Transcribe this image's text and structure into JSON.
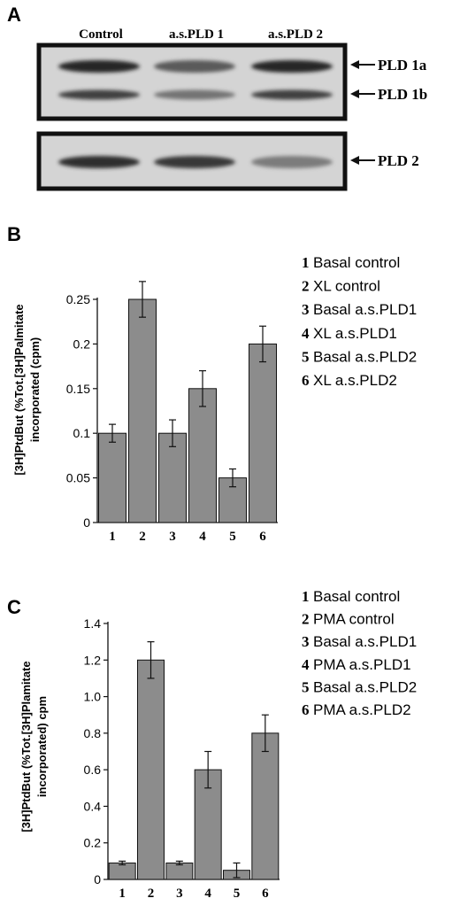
{
  "panel_a": {
    "letter": "A",
    "lanes": [
      "Control",
      "a.s.PLD 1",
      "a.s.PLD 2"
    ],
    "bands_top": [
      "PLD 1a",
      "PLD 1b"
    ],
    "bands_bottom": [
      "PLD 2"
    ],
    "band_intensity": {
      "PLD 1a": [
        0.95,
        0.65,
        0.95
      ],
      "PLD 1b": [
        0.8,
        0.5,
        0.8
      ],
      "PLD 2": [
        0.9,
        0.85,
        0.45
      ]
    }
  },
  "chart_data": [
    {
      "panel": "B",
      "type": "bar",
      "categories": [
        "1",
        "2",
        "3",
        "4",
        "5",
        "6"
      ],
      "values": [
        0.1,
        0.25,
        0.1,
        0.15,
        0.05,
        0.2
      ],
      "errors": [
        0.01,
        0.02,
        0.015,
        0.02,
        0.01,
        0.02
      ],
      "ylabel": [
        "[3H]PtdBut (%Tot.[3H]Palmitate",
        "incorporated (cpm)"
      ],
      "ylim": [
        0,
        0.25
      ],
      "yticks": [
        "0",
        "0.05",
        "0.1",
        "0.15",
        "0.2",
        "0.25"
      ],
      "legend": [
        {
          "num": "1",
          "text": "Basal control"
        },
        {
          "num": "2",
          "text": "XL control"
        },
        {
          "num": "3",
          "text": "Basal a.s.PLD1"
        },
        {
          "num": "4",
          "text": "XL a.s.PLD1"
        },
        {
          "num": "5",
          "text": "Basal a.s.PLD2"
        },
        {
          "num": "6",
          "text": "XL a.s.PLD2"
        }
      ],
      "bar_color": "#8c8c8c",
      "grid": false
    },
    {
      "panel": "C",
      "type": "bar",
      "categories": [
        "1",
        "2",
        "3",
        "4",
        "5",
        "6"
      ],
      "values": [
        0.09,
        1.2,
        0.09,
        0.6,
        0.05,
        0.8
      ],
      "errors": [
        0.01,
        0.1,
        0.01,
        0.1,
        0.04,
        0.1
      ],
      "ylabel": [
        "[3H]PtdBut  (%Tot.[3H]Plamitate",
        "incorporated) cpm"
      ],
      "ylim": [
        0,
        1.4
      ],
      "yticks": [
        "0",
        "0.2",
        "0.4",
        "0.6",
        "0.8",
        "1.0",
        "1.2",
        "1.4"
      ],
      "legend": [
        {
          "num": "1",
          "text": "Basal control"
        },
        {
          "num": "2",
          "text": "PMA control"
        },
        {
          "num": "3",
          "text": "Basal a.s.PLD1"
        },
        {
          "num": "4",
          "text": "PMA a.s.PLD1"
        },
        {
          "num": "5",
          "text": "Basal a.s.PLD2"
        },
        {
          "num": "6",
          "text": "PMA a.s.PLD2"
        }
      ],
      "bar_color": "#8c8c8c",
      "grid": false
    }
  ]
}
